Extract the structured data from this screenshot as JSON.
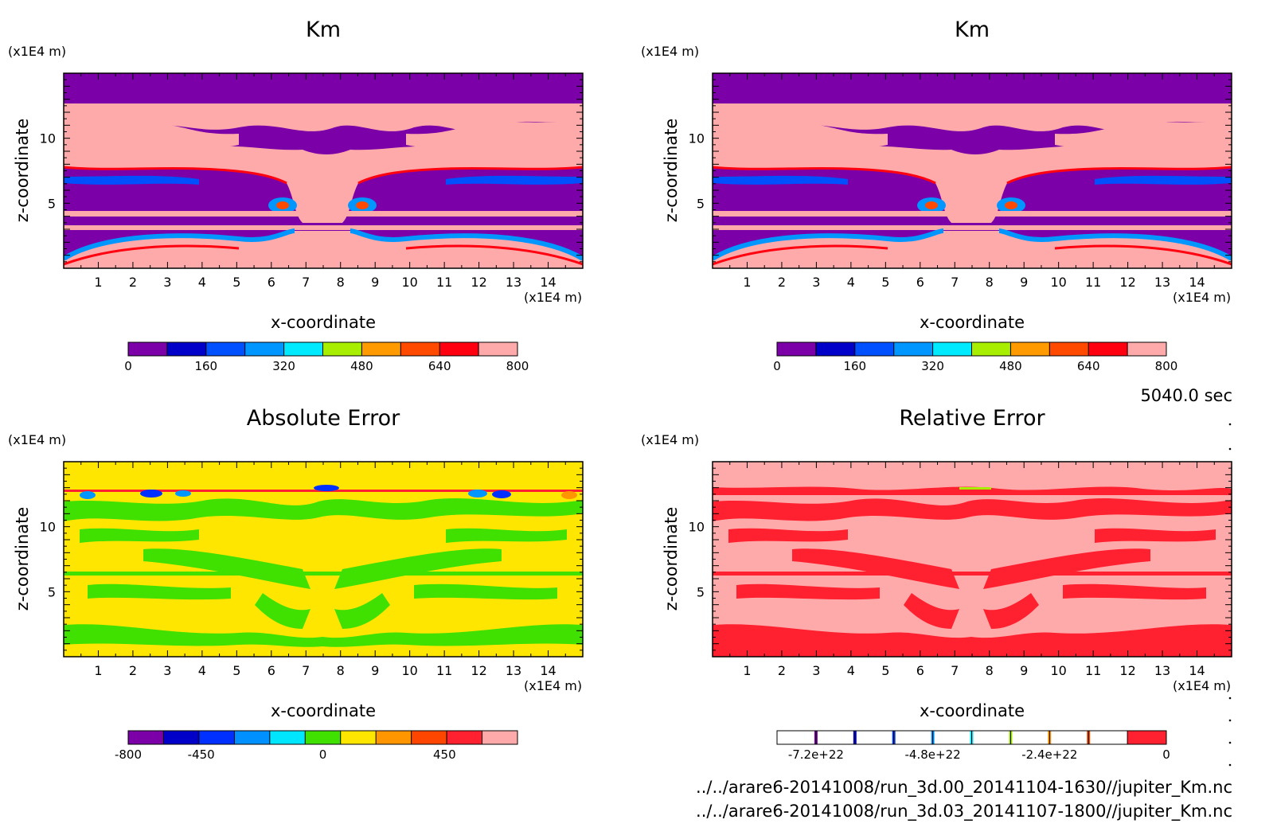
{
  "chart_data": [
    {
      "type": "heatmap",
      "title": "Km",
      "xlabel": "x-coordinate",
      "ylabel": "z-coordinate",
      "x_unit": "(x1E4 m)",
      "y_unit": "(x1E4 m)",
      "xlim": [
        0,
        15
      ],
      "ylim": [
        0,
        15
      ],
      "xticks": [
        1,
        2,
        3,
        4,
        5,
        6,
        7,
        8,
        9,
        10,
        11,
        12,
        13,
        14
      ],
      "yticks": [
        5,
        10
      ],
      "colorbar": {
        "colors": [
          "#7b00a8",
          "#0000c8",
          "#0050ff",
          "#0096ff",
          "#00eaff",
          "#a8ee00",
          "#ff9a00",
          "#ff4a00",
          "#ff0010",
          "#ffaaaa"
        ],
        "ticks": [
          0,
          160,
          320,
          480,
          640,
          800
        ],
        "tick_labels": [
          "0",
          "160",
          "320",
          "480",
          "640",
          "800"
        ]
      },
      "background": "#7b00a8",
      "fill": "#ffaaaa"
    },
    {
      "type": "heatmap",
      "title": "Km",
      "xlabel": "x-coordinate",
      "ylabel": "z-coordinate",
      "x_unit": "(x1E4 m)",
      "y_unit": "(x1E4 m)",
      "xlim": [
        0,
        15
      ],
      "ylim": [
        0,
        15
      ],
      "xticks": [
        1,
        2,
        3,
        4,
        5,
        6,
        7,
        8,
        9,
        10,
        11,
        12,
        13,
        14
      ],
      "yticks": [
        5,
        10
      ],
      "colorbar": {
        "colors": [
          "#7b00a8",
          "#0000c8",
          "#0050ff",
          "#0096ff",
          "#00eaff",
          "#a8ee00",
          "#ff9a00",
          "#ff4a00",
          "#ff0010",
          "#ffaaaa"
        ],
        "ticks": [
          0,
          160,
          320,
          480,
          640,
          800
        ],
        "tick_labels": [
          "0",
          "160",
          "320",
          "480",
          "640",
          "800"
        ]
      },
      "background": "#7b00a8",
      "fill": "#ffaaaa"
    },
    {
      "type": "heatmap",
      "title": "Absolute Error",
      "xlabel": "x-coordinate",
      "ylabel": "z-coordinate",
      "x_unit": "(x1E4 m)",
      "y_unit": "(x1E4 m)",
      "xlim": [
        0,
        15
      ],
      "ylim": [
        0,
        15
      ],
      "xticks": [
        1,
        2,
        3,
        4,
        5,
        6,
        7,
        8,
        9,
        10,
        11,
        12,
        13,
        14
      ],
      "yticks": [
        5,
        10
      ],
      "colorbar": {
        "colors": [
          "#7b00a8",
          "#0000c8",
          "#0030ff",
          "#0090ff",
          "#00e6ff",
          "#40e000",
          "#ffe600",
          "#ff9600",
          "#ff4600",
          "#ff2030",
          "#ffaaaa"
        ],
        "ticks": [
          -800,
          -450,
          0,
          450
        ],
        "tick_labels": [
          "-800",
          "-450",
          "0",
          "450"
        ]
      },
      "background": "#ffe600",
      "fill": "#40e000"
    },
    {
      "type": "heatmap",
      "title": "Relative Error",
      "xlabel": "x-coordinate",
      "ylabel": "z-coordinate",
      "x_unit": "(x1E4 m)",
      "y_unit": "(x1E4 m)",
      "xlim": [
        0,
        15
      ],
      "ylim": [
        0,
        15
      ],
      "xticks": [
        1,
        2,
        3,
        4,
        5,
        6,
        7,
        8,
        9,
        10,
        11,
        12,
        13,
        14
      ],
      "yticks": [
        5,
        10
      ],
      "colorbar": {
        "colors": [
          "#ffffff",
          "#7b00a8",
          "#0000c8",
          "#0040ff",
          "#0096ff",
          "#00eaff",
          "#a8ee00",
          "#ff9a00",
          "#ff4a00",
          "#ff2030"
        ],
        "ticks": [
          "-7.2e+22",
          "-4.8e+22",
          "-2.4e+22",
          "0"
        ],
        "tick_labels": [
          "-7.2e+22",
          "-4.8e+22",
          "-2.4e+22",
          "0"
        ]
      },
      "background": "#ffaaaa",
      "fill": "#ff2030"
    }
  ],
  "info": {
    "time": "5040.0 sec",
    "file1": "../../arare6-20141008/run_3d.00_20141104-1630//jupiter_Km.nc",
    "file2": "../../arare6-20141008/run_3d.03_20141107-1800//jupiter_Km.nc"
  }
}
